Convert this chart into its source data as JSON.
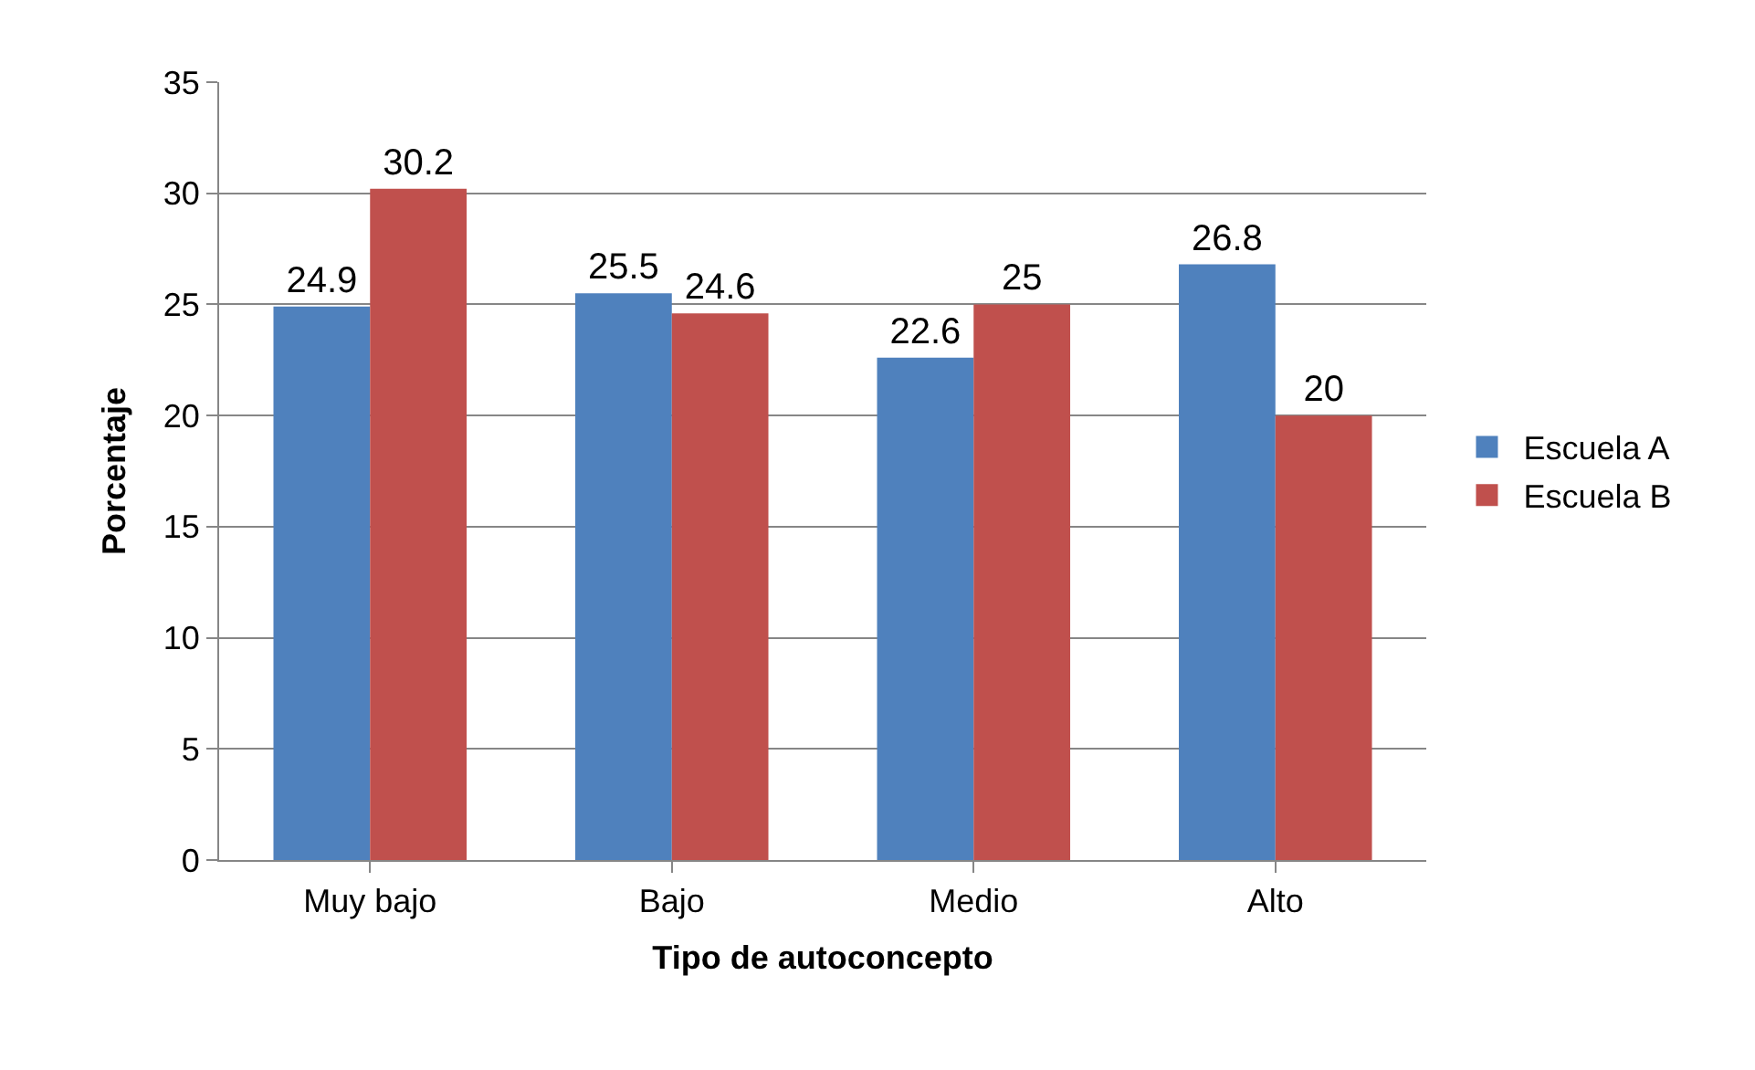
{
  "chart_data": {
    "type": "bar",
    "xlabel": "Tipo de autoconcepto",
    "ylabel": "Porcentaje",
    "categories": [
      "Muy bajo",
      "Bajo",
      "Medio",
      "Alto"
    ],
    "series": [
      {
        "name": "Escuela A",
        "color": "#4f81bd",
        "values": [
          24.9,
          25.5,
          22.6,
          26.8
        ]
      },
      {
        "name": "Escuela B",
        "color": "#c0504d",
        "values": [
          30.2,
          24.6,
          25,
          20
        ]
      }
    ],
    "ylim": [
      0,
      35
    ],
    "yticks": [
      0,
      5,
      10,
      15,
      20,
      25,
      30,
      35
    ],
    "grid": "y",
    "legend": "right",
    "data_labels": true
  }
}
